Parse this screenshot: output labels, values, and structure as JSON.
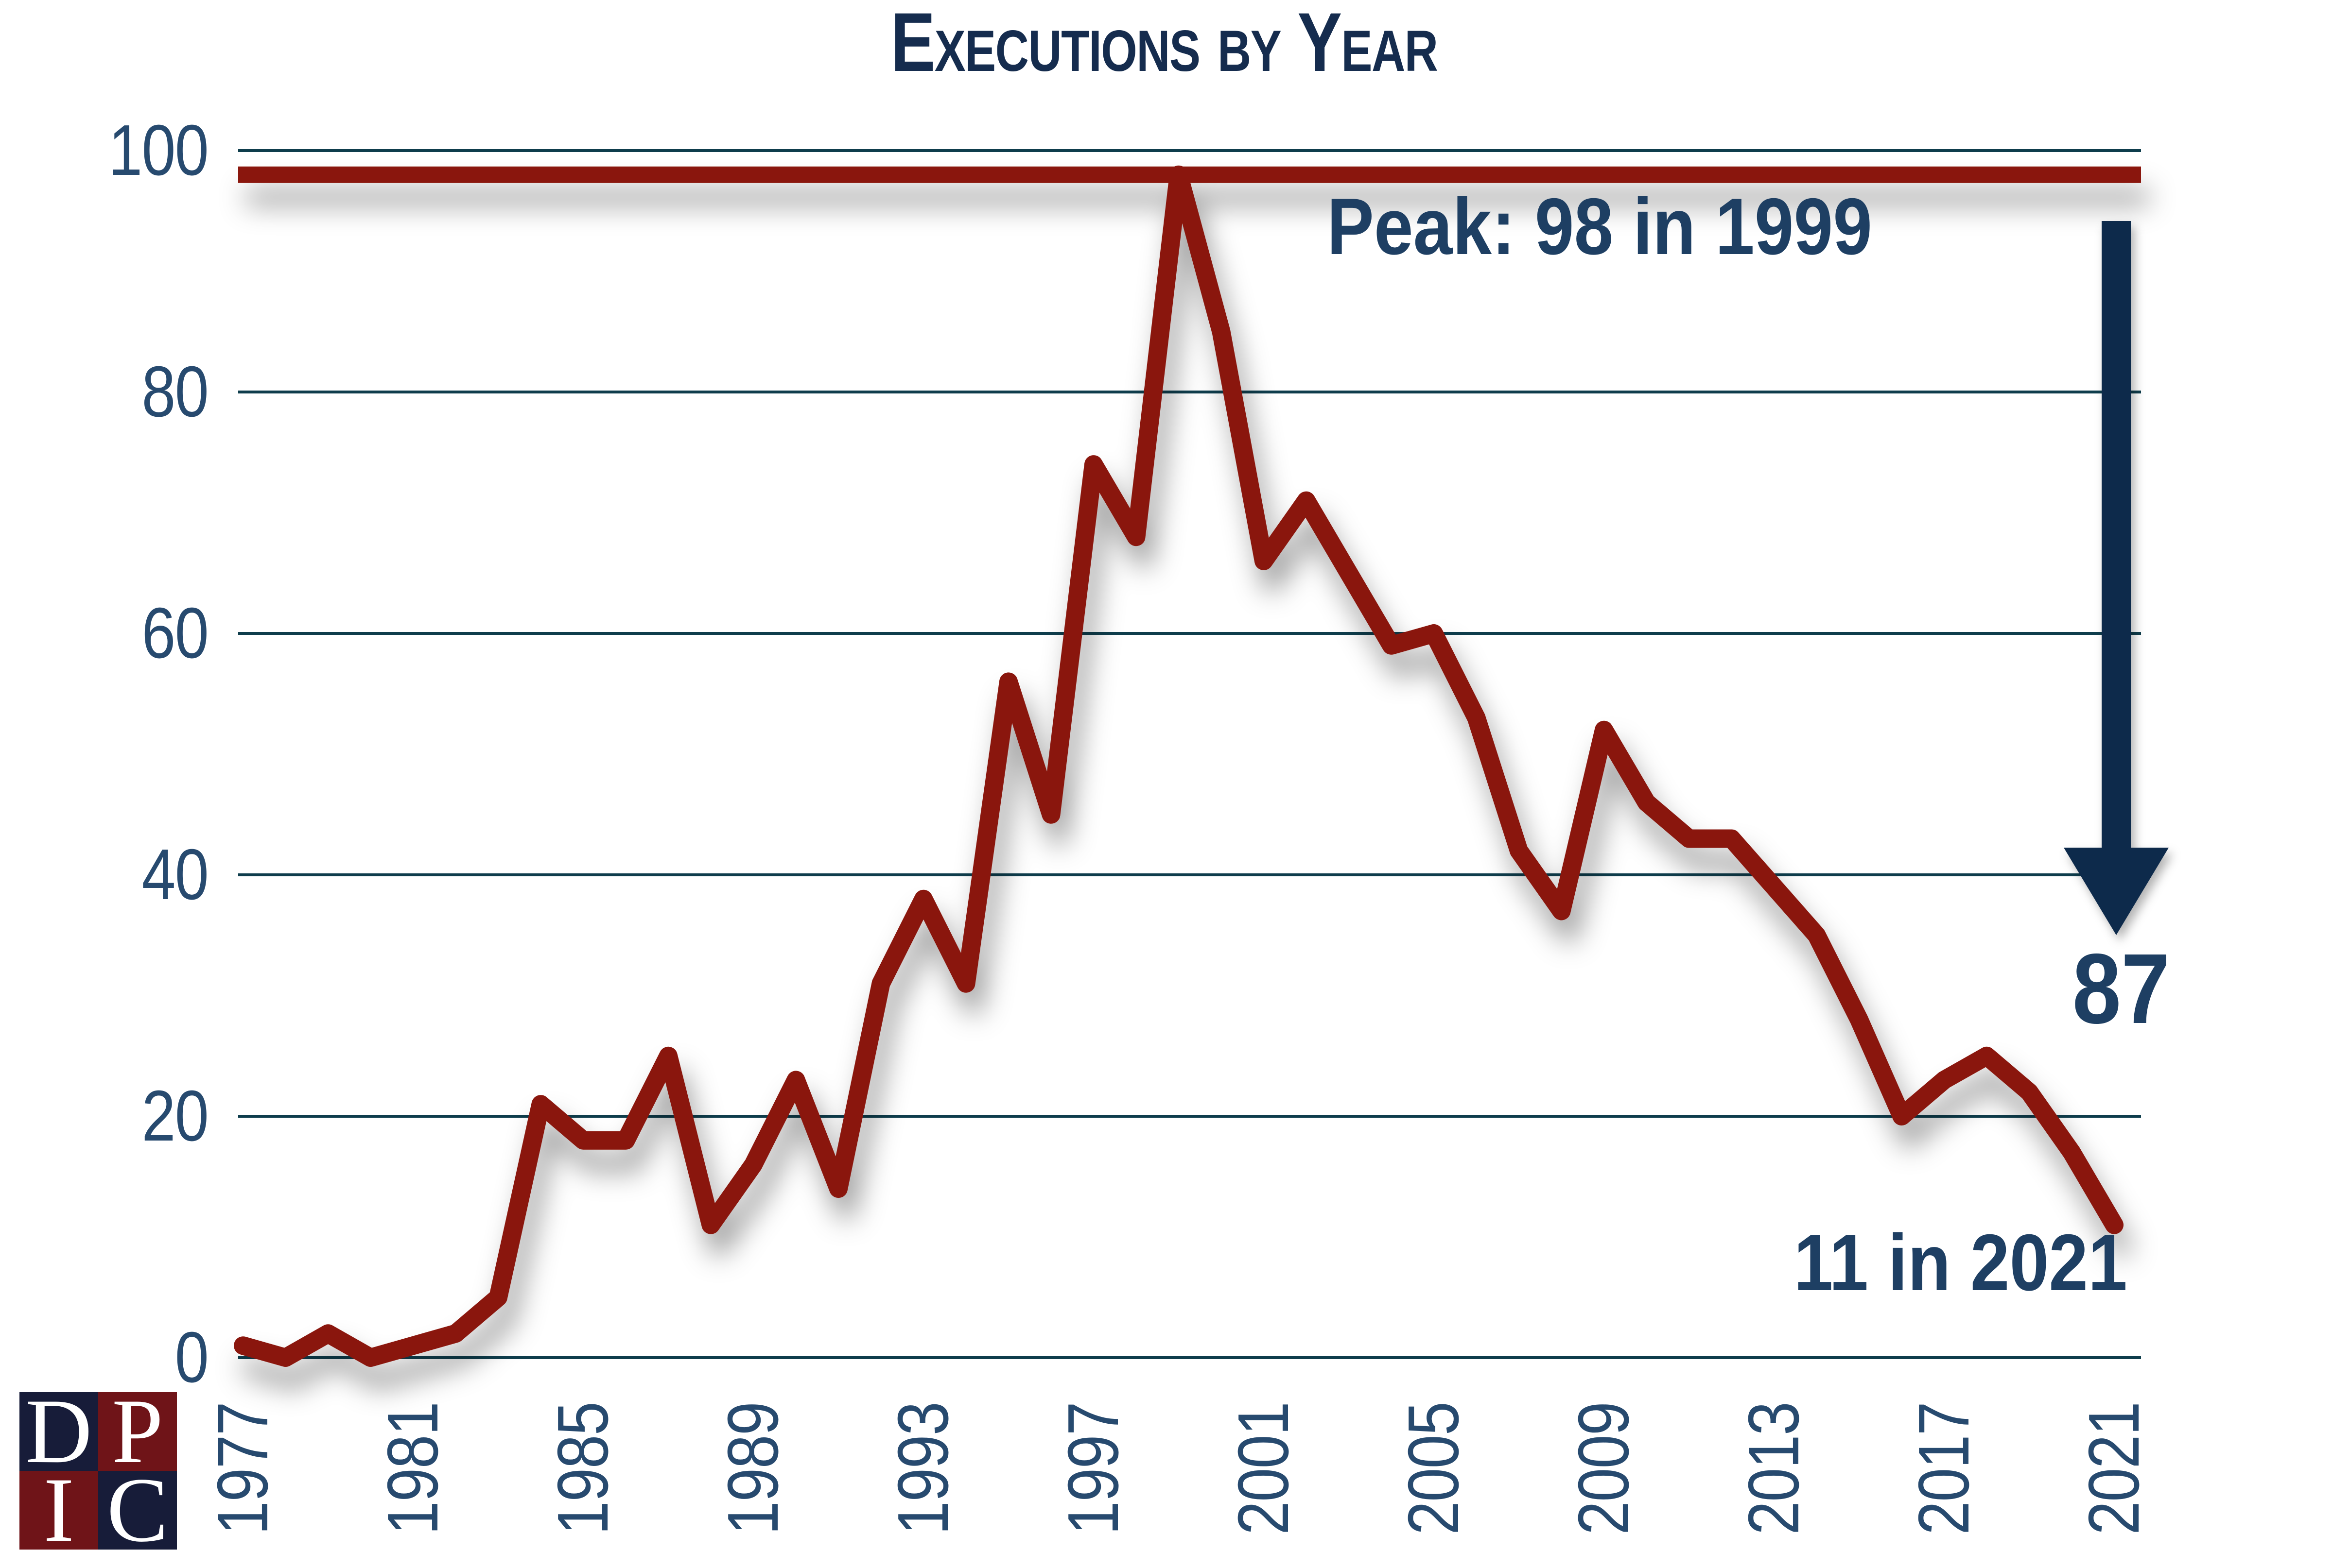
{
  "title": "Executions by Year",
  "annotations": {
    "peak_label": "Peak: 98 in 1999",
    "decline_label": "87",
    "latest_label": "11 in 2021"
  },
  "logo": {
    "name": "DPIC",
    "letters": {
      "tl": "D",
      "tr": "P",
      "bl": "I",
      "br": "C"
    }
  },
  "colors": {
    "line": "#8A160C",
    "gridline": "#0E3D4C",
    "tick_text": "#274A6F",
    "annotation_text": "#1E3F63",
    "title_text": "#152C4E",
    "arrow": "#112B4B",
    "logo_navy": "#171C39",
    "logo_red": "#6F1418",
    "logo_letter": "#FFFFFF"
  },
  "chart_data": {
    "type": "line",
    "title": "Executions by Year",
    "xlabel": "",
    "ylabel": "",
    "x": [
      1977,
      1978,
      1979,
      1980,
      1981,
      1982,
      1983,
      1984,
      1985,
      1986,
      1987,
      1988,
      1989,
      1990,
      1991,
      1992,
      1993,
      1994,
      1995,
      1996,
      1997,
      1998,
      1999,
      2000,
      2001,
      2002,
      2003,
      2004,
      2005,
      2006,
      2007,
      2008,
      2009,
      2010,
      2011,
      2012,
      2013,
      2014,
      2015,
      2016,
      2017,
      2018,
      2019,
      2020,
      2021
    ],
    "values": [
      1,
      0,
      2,
      0,
      1,
      2,
      5,
      21,
      18,
      18,
      25,
      11,
      16,
      23,
      14,
      31,
      38,
      31,
      56,
      45,
      74,
      68,
      98,
      85,
      66,
      71,
      65,
      59,
      60,
      53,
      42,
      37,
      52,
      46,
      43,
      43,
      39,
      35,
      28,
      20,
      23,
      25,
      22,
      17,
      11
    ],
    "ylim": [
      0,
      100
    ],
    "yticks": [
      0,
      20,
      40,
      60,
      80,
      100
    ],
    "xticks": [
      1977,
      1981,
      1985,
      1989,
      1993,
      1997,
      2001,
      2005,
      2009,
      2013,
      2017,
      2021
    ],
    "grid": true,
    "legend": false,
    "peak_line": {
      "value": 98,
      "label": "Peak: 98 in 1999"
    },
    "series_name": "Executions",
    "annotations": [
      {
        "text": "Peak: 98 in 1999",
        "position": "top-center"
      },
      {
        "text": "87",
        "position": "right",
        "meaning": "drop from peak 98 to 11"
      },
      {
        "text": "11 in 2021",
        "position": "bottom-right"
      }
    ]
  }
}
